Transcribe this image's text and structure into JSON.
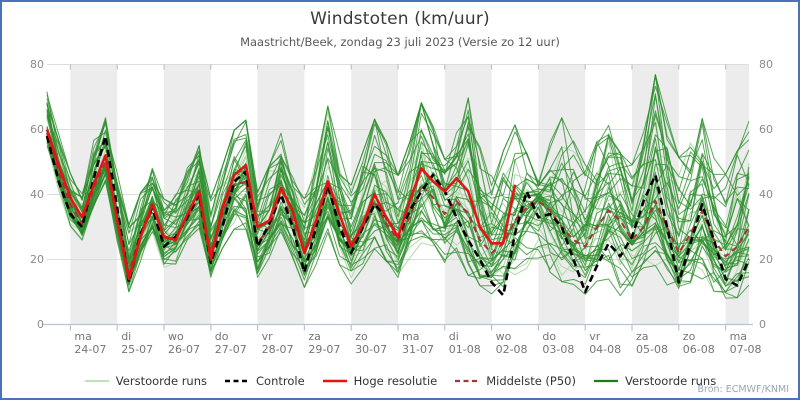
{
  "header": {
    "title": "Windstoten (km/uur)",
    "subtitle": "Maastricht/Beek, zondag 23 juli 2023 (Versie zo 12 uur)"
  },
  "source_label": "Bron: ECMWF/KNMI",
  "colors": {
    "frame_border": "#4a72b8",
    "band": "#ececec",
    "grid": "#dcdcdc",
    "axis": "#b9c3d6",
    "ensemble_dark": "#2e8f2e",
    "ensemble_light": "#aed8a6",
    "control": "#000000",
    "hres": "#e41414",
    "p50": "#a53434"
  },
  "legend": [
    {
      "label": "Verstoorde runs",
      "color": "#b6dcae",
      "dash": "none",
      "width": 1.8
    },
    {
      "label": "Controle",
      "color": "#000000",
      "dash": "5,3.5",
      "width": 2.5
    },
    {
      "label": "Hoge resolutie",
      "color": "#e41414",
      "dash": "none",
      "width": 2.5
    },
    {
      "label": "Middelste (P50)",
      "color": "#a53434",
      "dash": "5,3.5",
      "width": 2.2
    },
    {
      "label": "Verstoorde runs",
      "color": "#1d7d1d",
      "dash": "none",
      "width": 2.2
    }
  ],
  "chart_data": {
    "type": "line",
    "title": "Windstoten (km/uur)",
    "subtitle": "Maastricht/Beek, zondag 23 juli 2023 (Versie zo 12 uur)",
    "x_start": "zo 23-07 12:00",
    "step_hours": 6,
    "n_points": 61,
    "ylabel": "",
    "ylim": [
      0,
      80
    ],
    "yticks": [
      0,
      20,
      40,
      60,
      80
    ],
    "grid": "horizontal",
    "legend_position": "bottom-center",
    "day_ticks": [
      {
        "day": "ma",
        "date": "24-07",
        "shaded": true
      },
      {
        "day": "di",
        "date": "25-07",
        "shaded": false
      },
      {
        "day": "wo",
        "date": "26-07",
        "shaded": true
      },
      {
        "day": "do",
        "date": "27-07",
        "shaded": false
      },
      {
        "day": "vr",
        "date": "28-07",
        "shaded": true
      },
      {
        "day": "za",
        "date": "29-07",
        "shaded": false
      },
      {
        "day": "zo",
        "date": "30-07",
        "shaded": true
      },
      {
        "day": "ma",
        "date": "31-07",
        "shaded": false
      },
      {
        "day": "di",
        "date": "01-08",
        "shaded": true
      },
      {
        "day": "wo",
        "date": "02-08",
        "shaded": false
      },
      {
        "day": "do",
        "date": "03-08",
        "shaded": true
      },
      {
        "day": "vr",
        "date": "04-08",
        "shaded": false
      },
      {
        "day": "za",
        "date": "05-08",
        "shaded": true
      },
      {
        "day": "zo",
        "date": "06-08",
        "shaded": false
      },
      {
        "day": "ma",
        "date": "07-08",
        "shaded": true
      }
    ],
    "series": [
      {
        "name": "Controle",
        "style": "dashed",
        "color": "#000000",
        "values": [
          58,
          44,
          34,
          30,
          45,
          58,
          36,
          13,
          28,
          36,
          24,
          27,
          33,
          40,
          19,
          30,
          44,
          47,
          24,
          31,
          40,
          30,
          16,
          30,
          43,
          30,
          22,
          30,
          37,
          33,
          27,
          35,
          41,
          46,
          41,
          33,
          26,
          20,
          13,
          9,
          28,
          41,
          33,
          34,
          30,
          20,
          10,
          18,
          25,
          21,
          27,
          38,
          46,
          30,
          13,
          25,
          37,
          26,
          14,
          12,
          20
        ]
      },
      {
        "name": "Hoge resolutie",
        "style": "solid",
        "color": "#e41414",
        "values": [
          60,
          49,
          39,
          33,
          43,
          52,
          32,
          14,
          27,
          37,
          27,
          26,
          34,
          41,
          20,
          36,
          46,
          49,
          30,
          32,
          42,
          35,
          22,
          32,
          44,
          34,
          24,
          31,
          40,
          33,
          27,
          38,
          48,
          44,
          41,
          45,
          41,
          30,
          25,
          25,
          43
        ]
      },
      {
        "name": "Middelste (P50)",
        "style": "dashed",
        "color": "#a53434",
        "values": [
          59,
          47,
          37,
          31,
          42,
          50,
          33,
          16,
          28,
          35,
          26,
          27,
          33,
          39,
          22,
          34,
          43,
          44,
          25,
          30,
          40,
          32,
          23,
          30,
          42,
          31,
          24,
          30,
          38,
          31,
          26,
          33,
          43,
          39,
          34,
          38,
          34,
          26,
          22,
          25,
          32,
          36,
          38,
          35,
          30,
          26,
          24,
          30,
          35,
          32,
          26,
          30,
          38,
          30,
          22,
          28,
          35,
          26,
          21,
          24,
          30
        ]
      }
    ],
    "ensemble": {
      "name": "Verstoorde runs",
      "member_count": 50,
      "light_member_count": 12,
      "envelope_min": [
        54,
        40,
        30,
        26,
        36,
        44,
        26,
        10,
        20,
        28,
        18,
        19,
        26,
        30,
        14,
        24,
        30,
        30,
        15,
        21,
        28,
        21,
        12,
        19,
        29,
        19,
        13,
        18,
        24,
        20,
        15,
        21,
        26,
        24,
        19,
        23,
        16,
        12,
        10,
        11,
        14,
        17,
        20,
        17,
        14,
        13,
        10,
        14,
        15,
        10,
        12,
        17,
        19,
        13,
        9,
        12,
        15,
        11,
        8,
        9,
        13
      ],
      "envelope_max": [
        74,
        58,
        46,
        40,
        56,
        63,
        46,
        30,
        40,
        48,
        38,
        40,
        48,
        57,
        38,
        48,
        59,
        62,
        40,
        48,
        58,
        48,
        38,
        50,
        66,
        52,
        42,
        52,
        62,
        55,
        45,
        55,
        67,
        60,
        50,
        58,
        68,
        55,
        45,
        52,
        60,
        52,
        45,
        55,
        62,
        55,
        48,
        55,
        60,
        52,
        48,
        58,
        75,
        62,
        50,
        55,
        62,
        50,
        45,
        52,
        61
      ]
    }
  }
}
